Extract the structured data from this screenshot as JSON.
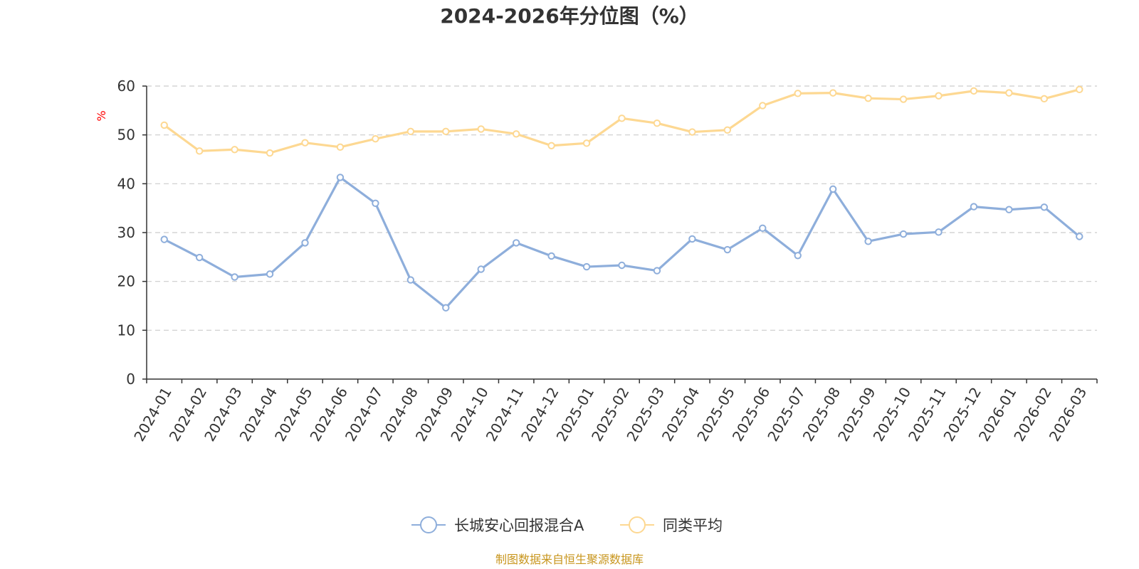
{
  "chart_data": {
    "type": "line",
    "title": "2024-2026年分位图（%）",
    "ylabel": "%",
    "xlabel": "",
    "ylim": [
      0,
      60
    ],
    "yticks": [
      0,
      10,
      20,
      30,
      40,
      50,
      60
    ],
    "grid": "horizontal-dashed",
    "legend_position": "bottom-center",
    "categories": [
      "2024-01",
      "2024-02",
      "2024-03",
      "2024-04",
      "2024-05",
      "2024-06",
      "2024-07",
      "2024-08",
      "2024-09",
      "2024-10",
      "2024-11",
      "2024-12",
      "2025-01",
      "2025-02",
      "2025-03",
      "2025-04",
      "2025-05",
      "2025-06",
      "2025-07",
      "2025-08",
      "2025-09",
      "2025-10",
      "2025-11",
      "2025-12",
      "2026-01",
      "2026-02",
      "2026-03"
    ],
    "series": [
      {
        "name": "长城安心回报混合A",
        "color": "#8eaedb",
        "values": [
          28.6,
          24.9,
          20.9,
          21.5,
          27.9,
          41.3,
          36.0,
          20.3,
          14.6,
          22.5,
          27.9,
          25.2,
          23.0,
          23.3,
          22.2,
          28.7,
          26.5,
          30.9,
          25.3,
          38.9,
          28.2,
          29.7,
          30.1,
          35.3,
          34.7,
          35.2,
          29.2
        ]
      },
      {
        "name": "同类平均",
        "color": "#fdd892",
        "values": [
          52.0,
          46.7,
          47.0,
          46.3,
          48.4,
          47.5,
          49.2,
          50.7,
          50.7,
          51.2,
          50.2,
          47.8,
          48.3,
          53.4,
          52.4,
          50.6,
          51.0,
          56.0,
          58.5,
          58.6,
          57.5,
          57.3,
          58.0,
          59.0,
          58.6,
          57.4,
          59.3
        ]
      }
    ],
    "source_note": "制图数据来自恒生聚源数据库",
    "colors": {
      "axis": "#333333",
      "grid": "#cccccc",
      "ylabel": "#ff0000",
      "source": "#c8961e"
    }
  }
}
